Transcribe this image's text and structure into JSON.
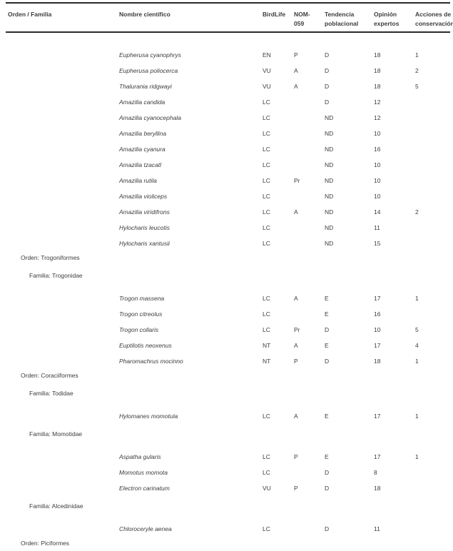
{
  "table": {
    "header_columns": [
      "Orden / Familia",
      "Nombre científico",
      "BirdLife",
      "NOM-\n059",
      "Tendencia\npoblacional",
      "Opinión\nexpertos",
      "Acciones de\nconservación"
    ],
    "rows": [
      {
        "type": "species",
        "nombre": "Eupherusa cyanophrys",
        "birdlife": "EN",
        "nom059": "P",
        "tendencia": "D",
        "opinion": "18",
        "acciones": "1"
      },
      {
        "type": "species",
        "nombre": "Eupherusa poliocerca",
        "birdlife": "VU",
        "nom059": "A",
        "tendencia": "D",
        "opinion": "18",
        "acciones": "2"
      },
      {
        "type": "species",
        "nombre": "Thalurania ridgwayi",
        "birdlife": "VU",
        "nom059": "A",
        "tendencia": "D",
        "opinion": "18",
        "acciones": "5"
      },
      {
        "type": "species",
        "nombre": "Amazilia candida",
        "birdlife": "LC",
        "nom059": "",
        "tendencia": "D",
        "opinion": "12",
        "acciones": ""
      },
      {
        "type": "species",
        "nombre": "Amazilia cyanocephala",
        "birdlife": "LC",
        "nom059": "",
        "tendencia": "ND",
        "opinion": "12",
        "acciones": ""
      },
      {
        "type": "species",
        "nombre": "Amazilia beryllina",
        "birdlife": "LC",
        "nom059": "",
        "tendencia": "ND",
        "opinion": "10",
        "acciones": ""
      },
      {
        "type": "species",
        "nombre": "Amazilia cyanura",
        "birdlife": "LC",
        "nom059": "",
        "tendencia": "ND",
        "opinion": "16",
        "acciones": ""
      },
      {
        "type": "species",
        "nombre": "Amazilia tzacatl",
        "birdlife": "LC",
        "nom059": "",
        "tendencia": "ND",
        "opinion": "10",
        "acciones": ""
      },
      {
        "type": "species",
        "nombre": "Amazilia rutila",
        "birdlife": "LC",
        "nom059": "Pr",
        "tendencia": "ND",
        "opinion": "10",
        "acciones": ""
      },
      {
        "type": "species",
        "nombre": "Amazilia violiceps",
        "birdlife": "LC",
        "nom059": "",
        "tendencia": "ND",
        "opinion": "10",
        "acciones": ""
      },
      {
        "type": "species",
        "nombre": "Amazilia viridifrons",
        "birdlife": "LC",
        "nom059": "A",
        "tendencia": "ND",
        "opinion": "14",
        "acciones": "2"
      },
      {
        "type": "species",
        "nombre": "Hylocharis leucotis",
        "birdlife": "LC",
        "nom059": "",
        "tendencia": "ND",
        "opinion": "11",
        "acciones": ""
      },
      {
        "type": "species",
        "nombre": "Hylocharis xantusii",
        "birdlife": "LC",
        "nom059": "",
        "tendencia": "ND",
        "opinion": "15",
        "acciones": ""
      },
      {
        "type": "orden",
        "label": "Orden: Trogoniformes"
      },
      {
        "type": "familia",
        "label": "Familia: Trogonidae"
      },
      {
        "type": "species",
        "nombre": "Trogon massena",
        "birdlife": "LC",
        "nom059": "A",
        "tendencia": "E",
        "opinion": "17",
        "acciones": "1"
      },
      {
        "type": "species",
        "nombre": "Trogon citreolus",
        "birdlife": "LC",
        "nom059": "",
        "tendencia": "E",
        "opinion": "16",
        "acciones": ""
      },
      {
        "type": "species",
        "nombre": "Trogon collaris",
        "birdlife": "LC",
        "nom059": "Pr",
        "tendencia": "D",
        "opinion": "10",
        "acciones": "5"
      },
      {
        "type": "species",
        "nombre": "Euptilotis neoxenus",
        "birdlife": "NT",
        "nom059": "A",
        "tendencia": "E",
        "opinion": "17",
        "acciones": "4"
      },
      {
        "type": "species",
        "nombre": "Pharomachrus mocinno",
        "birdlife": "NT",
        "nom059": "P",
        "tendencia": "D",
        "opinion": "18",
        "acciones": "1"
      },
      {
        "type": "orden",
        "label": "Orden: Coraciiformes"
      },
      {
        "type": "familia",
        "label": "Familia: Todidae"
      },
      {
        "type": "species",
        "nombre": "Hylomanes momotula",
        "birdlife": "LC",
        "nom059": "A",
        "tendencia": "E",
        "opinion": "17",
        "acciones": "1"
      },
      {
        "type": "familia",
        "label": "Familia: Momotidae"
      },
      {
        "type": "species",
        "nombre": "Aspatha gularis",
        "birdlife": "LC",
        "nom059": "P",
        "tendencia": "E",
        "opinion": "17",
        "acciones": "1"
      },
      {
        "type": "species",
        "nombre": "Momotus momota",
        "birdlife": "LC",
        "nom059": "",
        "tendencia": "D",
        "opinion": "8",
        "acciones": ""
      },
      {
        "type": "species",
        "nombre": "Electron carinatum",
        "birdlife": "VU",
        "nom059": "P",
        "tendencia": "D",
        "opinion": "18",
        "acciones": ""
      },
      {
        "type": "familia",
        "label": "Familia: Alcedinidae"
      },
      {
        "type": "species",
        "nombre": "Chloroceryle aenea",
        "birdlife": "LC",
        "nom059": "",
        "tendencia": "D",
        "opinion": "11",
        "acciones": ""
      },
      {
        "type": "orden",
        "label": "Orden: Piciformes"
      }
    ]
  }
}
